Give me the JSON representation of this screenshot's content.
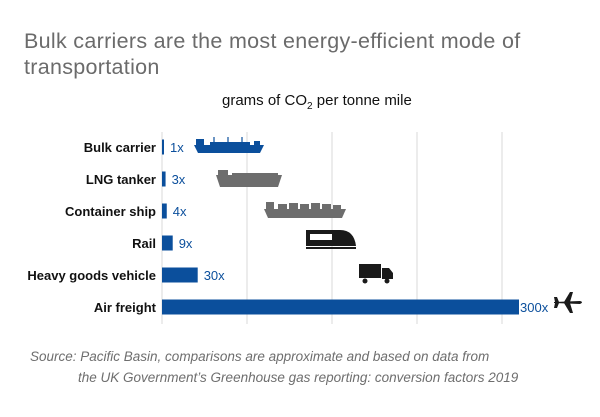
{
  "title": "Bulk carriers are the most energy-efficient mode of transportation",
  "subtitle": {
    "prefix": "grams of CO",
    "sub": "2",
    "suffix": " per tonne mile"
  },
  "source": {
    "line1": "Source: Pacific Basin, comparisons are approximate and based on data from",
    "line2": "the UK Government’s Greenhouse gas reporting: conversion factors 2019"
  },
  "colors": {
    "bar": "#0b4f9c",
    "grid": "#d9d9d9",
    "icon_grey": "#6d6d6d",
    "icon_dark": "#1a1a1a",
    "label_blue": "#0b4f9c"
  },
  "chart_data": {
    "type": "bar",
    "orientation": "horizontal",
    "title": "Bulk carriers are the most energy-efficient mode of transportation",
    "xlabel": "grams of CO2 per tonne mile",
    "ylabel": "",
    "xlim": [
      0,
      300
    ],
    "grid": true,
    "categories": [
      "Bulk carrier",
      "LNG tanker",
      "Container ship",
      "Rail",
      "Heavy goods vehicle",
      "Air freight"
    ],
    "values": [
      1,
      3,
      4,
      9,
      30,
      300
    ],
    "data_labels": [
      "1x",
      "3x",
      "4x",
      "9x",
      "30x",
      "300x"
    ],
    "icons": [
      "bulk-carrier-ship-icon",
      "lng-tanker-ship-icon",
      "container-ship-icon",
      "train-icon",
      "truck-icon",
      "airplane-icon"
    ]
  }
}
